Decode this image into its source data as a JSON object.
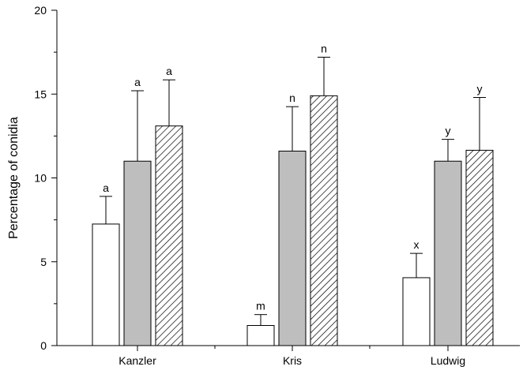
{
  "chart_data": {
    "type": "bar",
    "categories": [
      "Kanzler",
      "Kris",
      "Ludwig"
    ],
    "ylabel": "Percentage of conidia",
    "xlabel": "",
    "ylim": [
      0,
      20
    ],
    "yticks": [
      0,
      5,
      10,
      15,
      20
    ],
    "grid": false,
    "series": [
      {
        "fill": "white",
        "values": [
          7.25,
          1.2,
          4.05
        ],
        "errors": [
          1.65,
          0.65,
          1.45
        ],
        "letters": [
          "a",
          "m",
          "x"
        ]
      },
      {
        "fill": "gray",
        "values": [
          11.0,
          11.6,
          11.0
        ],
        "errors": [
          4.2,
          2.65,
          1.3
        ],
        "letters": [
          "a",
          "n",
          "y"
        ]
      },
      {
        "fill": "hatched",
        "values": [
          13.1,
          14.9,
          11.65
        ],
        "errors": [
          2.75,
          2.3,
          3.15
        ],
        "letters": [
          "a",
          "n",
          "y"
        ]
      }
    ],
    "colors": {
      "white": "#ffffff",
      "gray": "#bebebe",
      "stroke": "#000000"
    }
  }
}
